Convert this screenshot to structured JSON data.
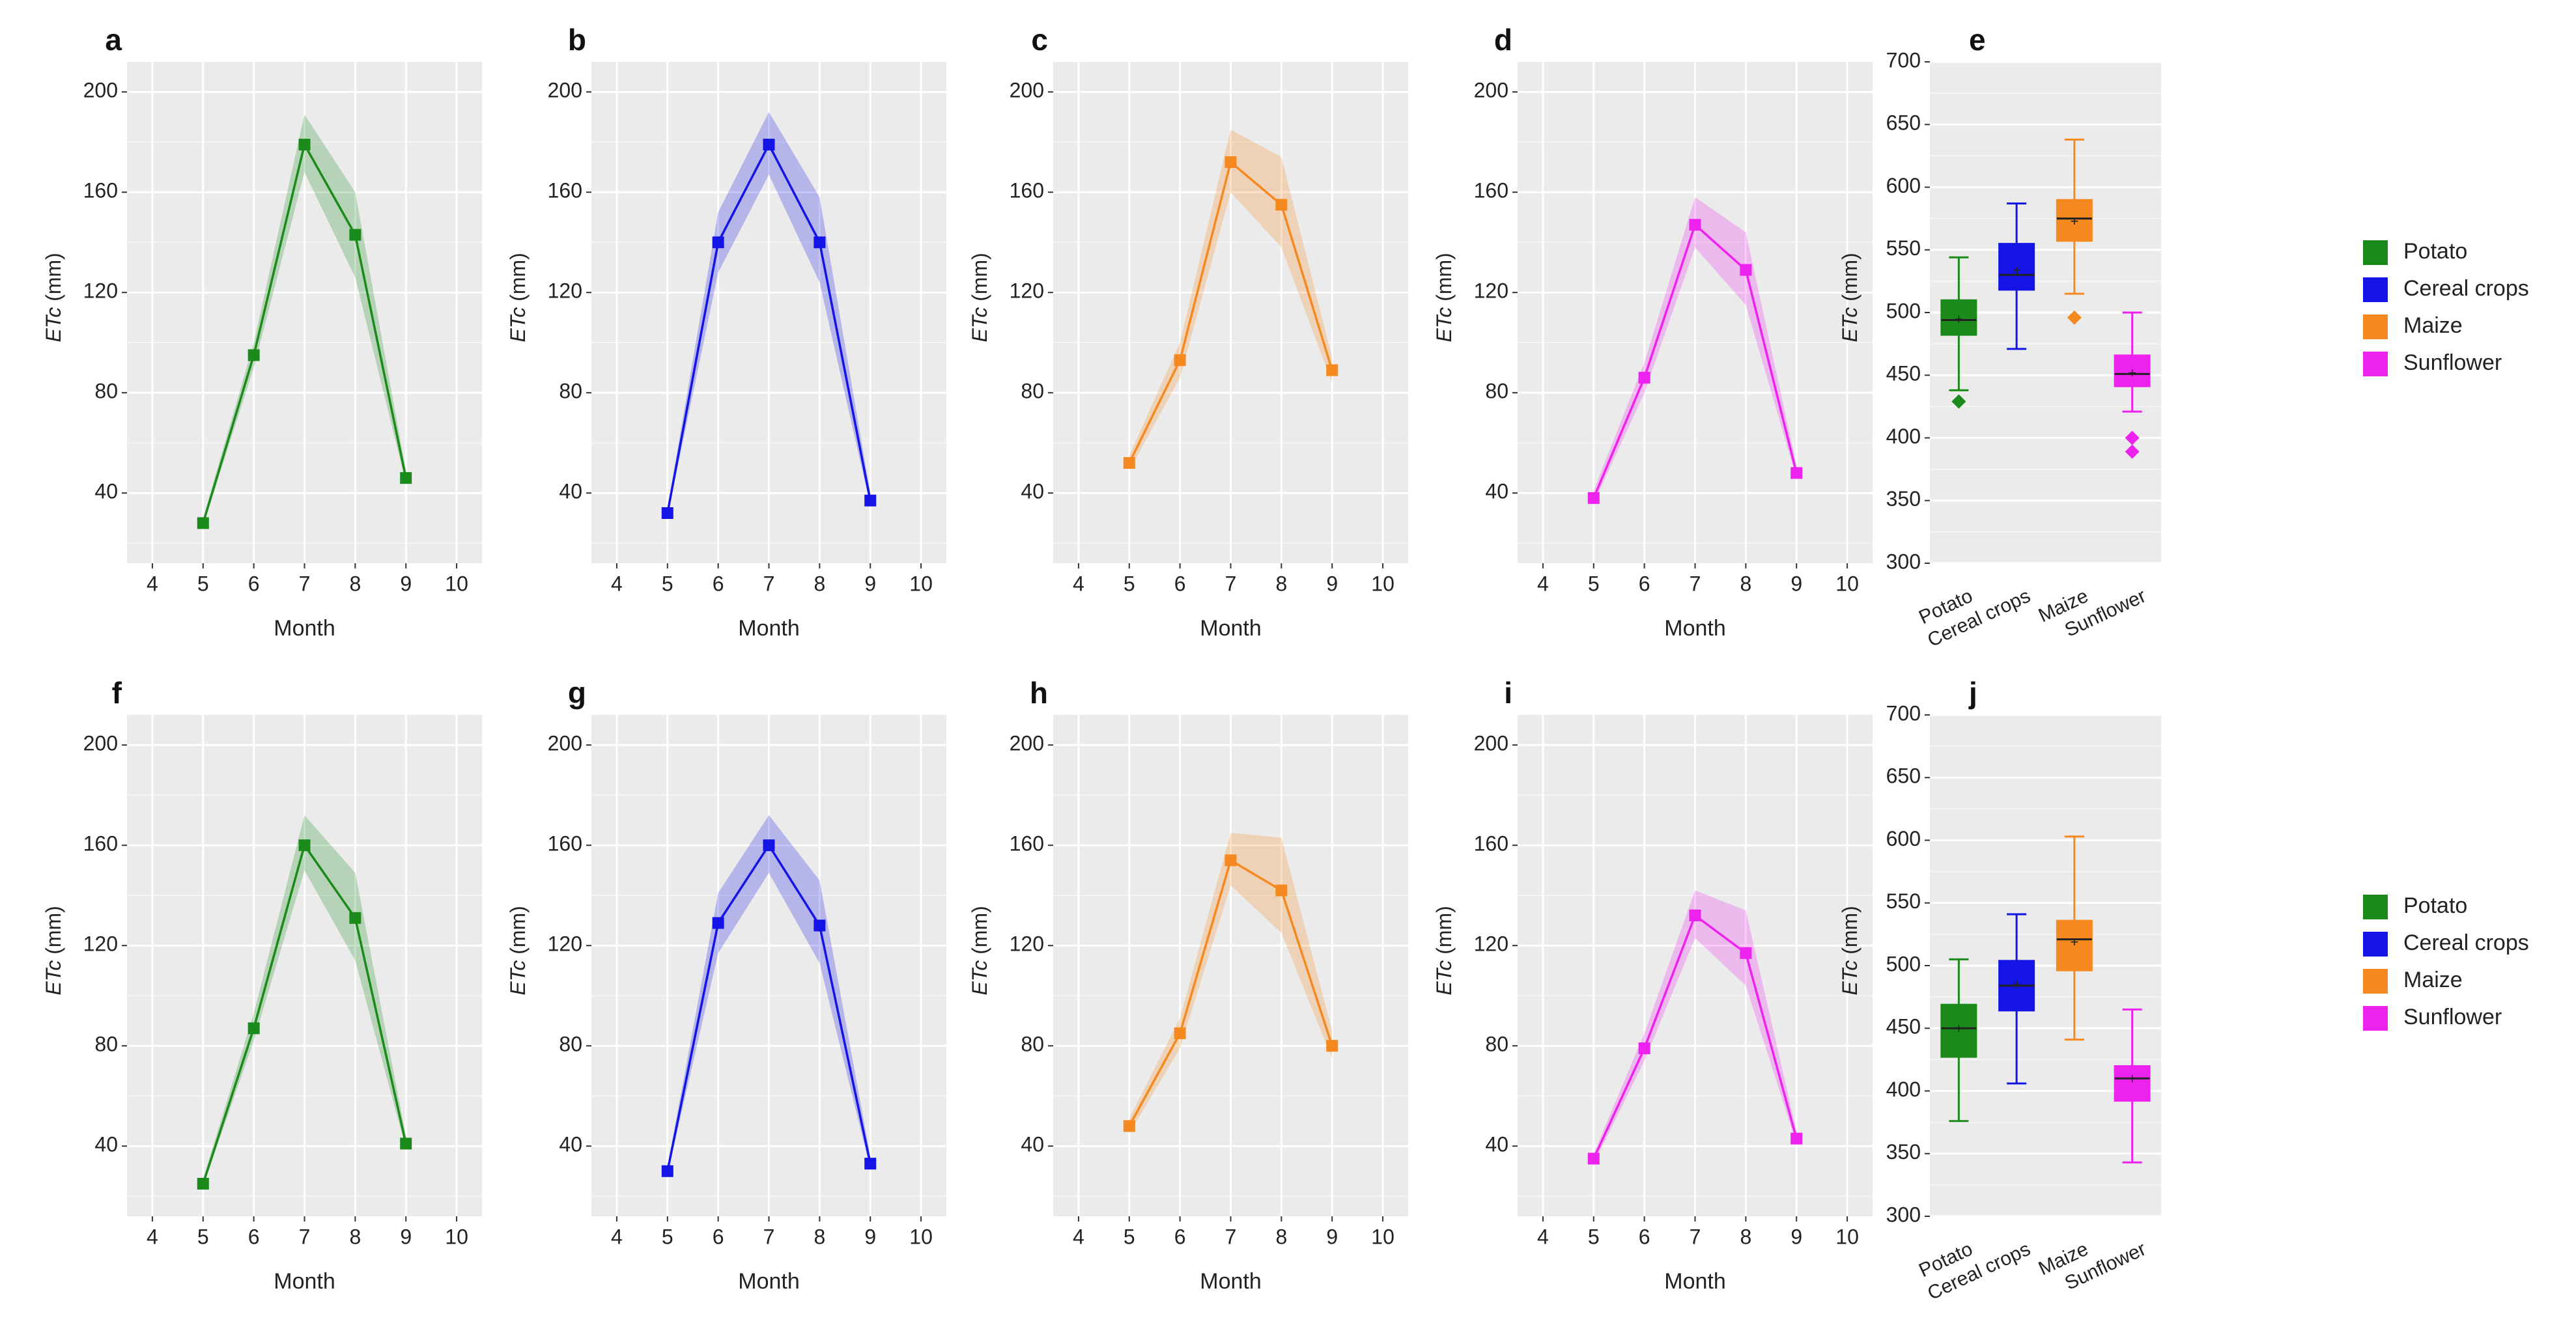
{
  "colors": {
    "potato": "#1a8a1a",
    "cereal": "#1414e6",
    "maize": "#f5891f",
    "sunflower": "#ee22ee",
    "panel_bg": "#ebebeb",
    "grid": "#ffffff"
  },
  "legend": {
    "top": [
      "Potato",
      "Cereal crops",
      "Maize",
      "Sunflower"
    ],
    "bottom": [
      "Potato",
      "Cereal crops",
      "Maize",
      "Sunflower"
    ]
  },
  "chart_data": [
    {
      "panel": "a",
      "type": "line",
      "crop": "potato",
      "xlabel": "Month",
      "ylabel": "ETc (mm)",
      "xlim": [
        3.5,
        10.5
      ],
      "ylim": [
        12,
        212
      ],
      "xticks": [
        4,
        5,
        6,
        7,
        8,
        9,
        10
      ],
      "yticks": [
        40,
        80,
        120,
        160,
        200
      ],
      "x": [
        5,
        6,
        7,
        8,
        9
      ],
      "values": [
        28,
        95,
        179,
        143,
        46
      ],
      "band_lower": [
        27,
        90,
        168,
        126,
        44
      ],
      "band_upper": [
        30,
        100,
        191,
        160,
        49
      ]
    },
    {
      "panel": "b",
      "type": "line",
      "crop": "cereal",
      "xlabel": "Month",
      "ylabel": "ETc (mm)",
      "xlim": [
        3.5,
        10.5
      ],
      "ylim": [
        12,
        212
      ],
      "xticks": [
        4,
        5,
        6,
        7,
        8,
        9,
        10
      ],
      "yticks": [
        40,
        80,
        120,
        160,
        200
      ],
      "x": [
        5,
        6,
        7,
        8,
        9
      ],
      "values": [
        32,
        140,
        179,
        140,
        37
      ],
      "band_lower": [
        31,
        128,
        167,
        124,
        35
      ],
      "band_upper": [
        34,
        152,
        192,
        158,
        40
      ]
    },
    {
      "panel": "c",
      "type": "line",
      "crop": "maize",
      "xlabel": "Month",
      "ylabel": "ETc (mm)",
      "xlim": [
        3.5,
        10.5
      ],
      "ylim": [
        12,
        212
      ],
      "xticks": [
        4,
        5,
        6,
        7,
        8,
        9,
        10
      ],
      "yticks": [
        40,
        80,
        120,
        160,
        200
      ],
      "x": [
        5,
        6,
        7,
        8,
        9
      ],
      "values": [
        52,
        93,
        172,
        155,
        89
      ],
      "band_lower": [
        49,
        86,
        160,
        138,
        84
      ],
      "band_upper": [
        55,
        100,
        185,
        174,
        94
      ]
    },
    {
      "panel": "d",
      "type": "line",
      "crop": "sunflower",
      "xlabel": "Month",
      "ylabel": "ETc (mm)",
      "xlim": [
        3.5,
        10.5
      ],
      "ylim": [
        12,
        212
      ],
      "xticks": [
        4,
        5,
        6,
        7,
        8,
        9,
        10
      ],
      "yticks": [
        40,
        80,
        120,
        160,
        200
      ],
      "x": [
        5,
        6,
        7,
        8,
        9
      ],
      "values": [
        38,
        86,
        147,
        129,
        48
      ],
      "band_lower": [
        36,
        80,
        138,
        115,
        46
      ],
      "band_upper": [
        41,
        92,
        158,
        144,
        51
      ]
    },
    {
      "panel": "e",
      "type": "box",
      "xlabel": "",
      "ylabel": "ETc (mm)",
      "ylim": [
        300,
        700
      ],
      "yticks": [
        300,
        350,
        400,
        450,
        500,
        550,
        600,
        650,
        700
      ],
      "categories": [
        "Potato",
        "Cereal crops",
        "Maize",
        "Sunflower"
      ],
      "crops": [
        "potato",
        "cereal",
        "maize",
        "sunflower"
      ],
      "boxes": [
        {
          "min": 438,
          "q1": 482,
          "median": 494,
          "q3": 510,
          "max": 544,
          "mean": 494,
          "outliers": [
            429
          ]
        },
        {
          "min": 471,
          "q1": 518,
          "median": 530,
          "q3": 555,
          "max": 587,
          "mean": 533,
          "outliers": []
        },
        {
          "min": 515,
          "q1": 557,
          "median": 575,
          "q3": 590,
          "max": 638,
          "mean": 572,
          "outliers": [
            496
          ]
        },
        {
          "min": 421,
          "q1": 441,
          "median": 451,
          "q3": 466,
          "max": 500,
          "mean": 451,
          "outliers": [
            400,
            389
          ]
        }
      ]
    },
    {
      "panel": "f",
      "type": "line",
      "crop": "potato",
      "xlabel": "Month",
      "ylabel": "ETc (mm)",
      "xlim": [
        3.5,
        10.5
      ],
      "ylim": [
        12,
        212
      ],
      "xticks": [
        4,
        5,
        6,
        7,
        8,
        9,
        10
      ],
      "yticks": [
        40,
        80,
        120,
        160,
        200
      ],
      "x": [
        5,
        6,
        7,
        8,
        9
      ],
      "values": [
        25,
        87,
        160,
        131,
        41
      ],
      "band_lower": [
        24,
        82,
        150,
        114,
        39
      ],
      "band_upper": [
        27,
        93,
        172,
        149,
        44
      ]
    },
    {
      "panel": "g",
      "type": "line",
      "crop": "cereal",
      "xlabel": "Month",
      "ylabel": "ETc (mm)",
      "xlim": [
        3.5,
        10.5
      ],
      "ylim": [
        12,
        212
      ],
      "xticks": [
        4,
        5,
        6,
        7,
        8,
        9,
        10
      ],
      "yticks": [
        40,
        80,
        120,
        160,
        200
      ],
      "x": [
        5,
        6,
        7,
        8,
        9
      ],
      "values": [
        30,
        129,
        160,
        128,
        33
      ],
      "band_lower": [
        29,
        117,
        149,
        113,
        31
      ],
      "band_upper": [
        32,
        141,
        172,
        146,
        36
      ]
    },
    {
      "panel": "h",
      "type": "line",
      "crop": "maize",
      "xlabel": "Month",
      "ylabel": "ETc (mm)",
      "xlim": [
        3.5,
        10.5
      ],
      "ylim": [
        12,
        212
      ],
      "xticks": [
        4,
        5,
        6,
        7,
        8,
        9,
        10
      ],
      "yticks": [
        40,
        80,
        120,
        160,
        200
      ],
      "x": [
        5,
        6,
        7,
        8,
        9
      ],
      "values": [
        48,
        85,
        154,
        142,
        80
      ],
      "band_lower": [
        45,
        79,
        144,
        125,
        75
      ],
      "band_upper": [
        51,
        91,
        165,
        163,
        86
      ]
    },
    {
      "panel": "i",
      "type": "line",
      "crop": "sunflower",
      "xlabel": "Month",
      "ylabel": "ETc (mm)",
      "xlim": [
        3.5,
        10.5
      ],
      "ylim": [
        12,
        212
      ],
      "xticks": [
        4,
        5,
        6,
        7,
        8,
        9,
        10
      ],
      "yticks": [
        40,
        80,
        120,
        160,
        200
      ],
      "x": [
        5,
        6,
        7,
        8,
        9
      ],
      "values": [
        35,
        79,
        132,
        117,
        43
      ],
      "band_lower": [
        33,
        74,
        123,
        104,
        41
      ],
      "band_upper": [
        37,
        85,
        142,
        134,
        46
      ]
    },
    {
      "panel": "j",
      "type": "box",
      "xlabel": "",
      "ylabel": "ETc (mm)",
      "ylim": [
        300,
        700
      ],
      "yticks": [
        300,
        350,
        400,
        450,
        500,
        550,
        600,
        650,
        700
      ],
      "categories": [
        "Potato",
        "Cereal crops",
        "Maize",
        "Sunflower"
      ],
      "crops": [
        "potato",
        "cereal",
        "maize",
        "sunflower"
      ],
      "boxes": [
        {
          "min": 376,
          "q1": 427,
          "median": 450,
          "q3": 469,
          "max": 505,
          "mean": 449,
          "outliers": []
        },
        {
          "min": 406,
          "q1": 464,
          "median": 484,
          "q3": 504,
          "max": 541,
          "mean": 484,
          "outliers": []
        },
        {
          "min": 441,
          "q1": 496,
          "median": 521,
          "q3": 536,
          "max": 603,
          "mean": 518,
          "outliers": []
        },
        {
          "min": 343,
          "q1": 392,
          "median": 410,
          "q3": 420,
          "max": 465,
          "mean": 409,
          "outliers": []
        }
      ]
    }
  ]
}
